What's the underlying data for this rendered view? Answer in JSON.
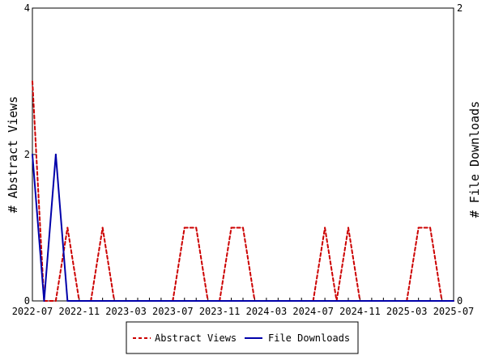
{
  "chart_data": {
    "type": "line",
    "left_axis_label": "# Abstract Views",
    "right_axis_label": "# File Downloads",
    "left_ylim": [
      0,
      4
    ],
    "right_ylim": [
      0,
      2
    ],
    "left_yticks": [
      "0",
      "2",
      "4"
    ],
    "right_yticks": [
      "0",
      "2"
    ],
    "x_range": [
      "2022-07",
      "2025-07"
    ],
    "xtick_labels": [
      "2022-07",
      "2022-11",
      "2023-03",
      "2023-07",
      "2023-11",
      "2024-03",
      "2024-07",
      "2024-11",
      "2025-03",
      "2025-07"
    ],
    "months": [
      "2022-07",
      "2022-08",
      "2022-09",
      "2022-10",
      "2022-11",
      "2022-12",
      "2023-01",
      "2023-02",
      "2023-03",
      "2023-04",
      "2023-05",
      "2023-06",
      "2023-07",
      "2023-08",
      "2023-09",
      "2023-10",
      "2023-11",
      "2023-12",
      "2024-01",
      "2024-02",
      "2024-03",
      "2024-04",
      "2024-05",
      "2024-06",
      "2024-07",
      "2024-08",
      "2024-09",
      "2024-10",
      "2024-11",
      "2024-12",
      "2025-01",
      "2025-02",
      "2025-03",
      "2025-04",
      "2025-05",
      "2025-06",
      "2025-07"
    ],
    "series": [
      {
        "name": "Abstract Views",
        "axis": "left",
        "color": "#cc0000",
        "style": "dashed",
        "values": [
          3,
          0,
          0,
          1,
          0,
          0,
          1,
          0,
          0,
          0,
          0,
          0,
          0,
          1,
          1,
          0,
          0,
          1,
          1,
          0,
          0,
          0,
          0,
          0,
          0,
          1,
          0,
          1,
          0,
          0,
          0,
          0,
          0,
          1,
          1,
          0,
          0
        ]
      },
      {
        "name": "File Downloads",
        "axis": "right",
        "color": "#0000aa",
        "style": "solid",
        "values": [
          1,
          0,
          1,
          0,
          0,
          0,
          0,
          0,
          0,
          0,
          0,
          0,
          0,
          0,
          0,
          0,
          0,
          0,
          0,
          0,
          0,
          0,
          0,
          0,
          0,
          0,
          0,
          0,
          0,
          0,
          0,
          0,
          0,
          0,
          0,
          0,
          0
        ]
      }
    ],
    "legend_position": "bottom-center",
    "grid": false
  }
}
